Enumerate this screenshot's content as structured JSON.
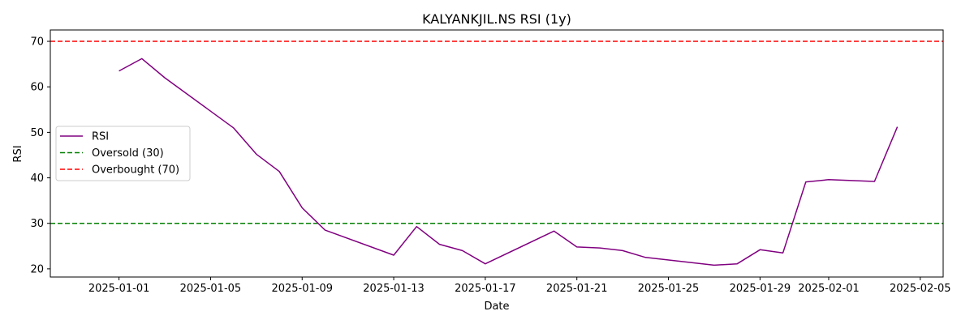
{
  "chart_data": {
    "type": "line",
    "title": "KALYANKJIL.NS RSI (1y)",
    "xlabel": "Date",
    "ylabel": "RSI",
    "xlim": [
      "2024-12-29",
      "2025-02-06"
    ],
    "ylim": [
      18.2,
      72.5
    ],
    "x_ticks": [
      "2025-01-01",
      "2025-01-05",
      "2025-01-09",
      "2025-01-13",
      "2025-01-17",
      "2025-01-21",
      "2025-01-25",
      "2025-01-29",
      "2025-02-01",
      "2025-02-05"
    ],
    "y_ticks": [
      20,
      30,
      40,
      50,
      60,
      70
    ],
    "grid": false,
    "legend_position": "center-left",
    "series": [
      {
        "name": "RSI",
        "color": "#800080",
        "style": "solid",
        "points": [
          {
            "x": "2025-01-01",
            "y": 63.5
          },
          {
            "x": "2025-01-02",
            "y": 66.2
          },
          {
            "x": "2025-01-03",
            "y": 62.0
          },
          {
            "x": "2025-01-06",
            "y": 51.0
          },
          {
            "x": "2025-01-07",
            "y": 45.2
          },
          {
            "x": "2025-01-08",
            "y": 41.4
          },
          {
            "x": "2025-01-09",
            "y": 33.4
          },
          {
            "x": "2025-01-10",
            "y": 28.5
          },
          {
            "x": "2025-01-13",
            "y": 23.0
          },
          {
            "x": "2025-01-14",
            "y": 29.3
          },
          {
            "x": "2025-01-15",
            "y": 25.4
          },
          {
            "x": "2025-01-16",
            "y": 24.0
          },
          {
            "x": "2025-01-17",
            "y": 21.1
          },
          {
            "x": "2025-01-20",
            "y": 28.3
          },
          {
            "x": "2025-01-21",
            "y": 24.8
          },
          {
            "x": "2025-01-22",
            "y": 24.6
          },
          {
            "x": "2025-01-23",
            "y": 24.0
          },
          {
            "x": "2025-01-24",
            "y": 22.5
          },
          {
            "x": "2025-01-27",
            "y": 20.8
          },
          {
            "x": "2025-01-28",
            "y": 21.1
          },
          {
            "x": "2025-01-29",
            "y": 24.2
          },
          {
            "x": "2025-01-30",
            "y": 23.5
          },
          {
            "x": "2025-01-31",
            "y": 39.1
          },
          {
            "x": "2025-02-01",
            "y": 39.6
          },
          {
            "x": "2025-02-03",
            "y": 39.2
          },
          {
            "x": "2025-02-04",
            "y": 51.2
          }
        ]
      }
    ],
    "reference_lines": [
      {
        "name": "Oversold (30)",
        "y": 30,
        "color": "#008000",
        "style": "dashed"
      },
      {
        "name": "Overbought (70)",
        "y": 70,
        "color": "#ff0000",
        "style": "dashed"
      }
    ]
  }
}
